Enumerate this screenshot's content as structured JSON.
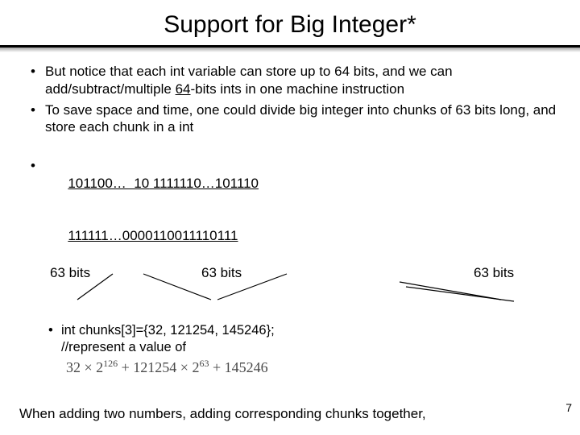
{
  "title": "Support for Big Integer*",
  "bullets": {
    "b1_a": "But notice that each int variable can store up to 64 bits, and we can add/subtract/multiple ",
    "b1_u": "64",
    "b1_b": "-bits ints in one machine instruction",
    "b2": "To save space and time, one could divide big integer into chunks of 63 bits long, and store each chunk in a int"
  },
  "chunk": {
    "line1_a": "101100…  10",
    "line1_b": " 1111110…101110",
    "line2": "111111…0000110011110111",
    "label1": "63 bits",
    "label2": "63 bits",
    "label3": "63 bits"
  },
  "lines": {
    "stroke": "#000000",
    "stroke_width": 1.2,
    "paths": [
      "M 84 12 L 40 44",
      "M 122 12 L 206 44",
      "M 300 12 L 214 44",
      "M 440 22 L 566 44",
      "M 448 28 L 582 46"
    ]
  },
  "sub": {
    "code": "int chunks[3]={32, 121254, 145246};",
    "comment": "//represent a value of",
    "formula_parts": [
      "32 × 2",
      "126",
      " + 121254 × 2",
      "63",
      " + 145246"
    ]
  },
  "bottom": "When adding two numbers, adding corresponding chunks together,",
  "page": "7"
}
